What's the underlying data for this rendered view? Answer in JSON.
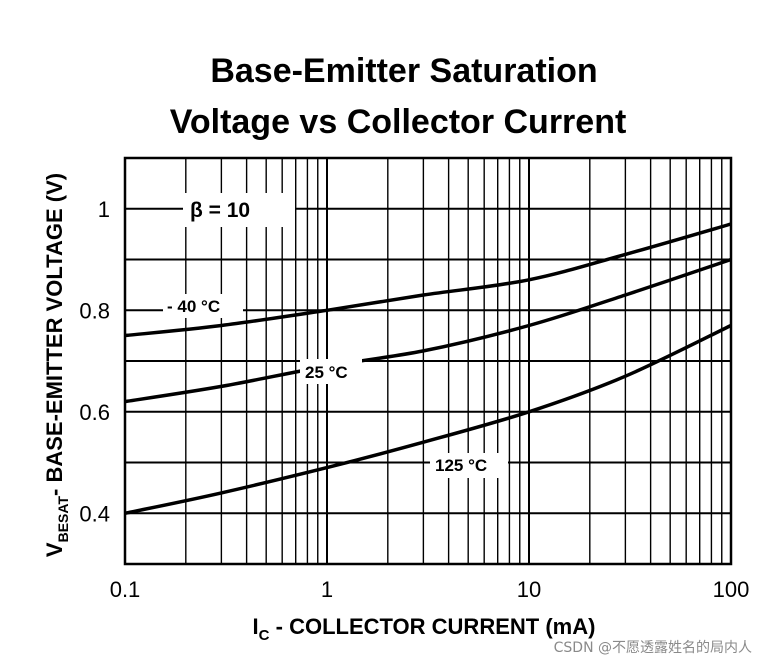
{
  "chart_data": {
    "type": "line",
    "title_line1": "Base-Emitter Saturation",
    "title_line2": "Voltage vs Collector Current",
    "xscale": "log",
    "xlim": [
      0.1,
      100
    ],
    "ylim": [
      0.3,
      1.1
    ],
    "x_ticks": [
      "0.1",
      "1",
      "10",
      "100"
    ],
    "y_ticks": [
      "0.4",
      "0.6",
      "0.8",
      "1"
    ],
    "xlabel_main": "I",
    "xlabel_sub": "C",
    "xlabel_rest": " - COLLECTOR CURRENT  (mA)",
    "ylabel_main": "V",
    "ylabel_sub": "BESAT",
    "ylabel_rest": "- BASE-EMITTER VOLTAGE (V)",
    "beta_label": "β  = 10",
    "grid": true,
    "series": [
      {
        "name": "- 40 °C",
        "x": [
          0.1,
          0.3,
          1,
          3,
          10,
          30,
          100
        ],
        "y": [
          0.75,
          0.77,
          0.8,
          0.83,
          0.86,
          0.91,
          0.97
        ]
      },
      {
        "name": "25 °C",
        "x": [
          0.1,
          0.3,
          1,
          3,
          10,
          30,
          100
        ],
        "y": [
          0.62,
          0.65,
          0.69,
          0.72,
          0.77,
          0.83,
          0.9
        ]
      },
      {
        "name": "125 °C",
        "x": [
          0.1,
          0.3,
          1,
          3,
          10,
          30,
          100
        ],
        "y": [
          0.4,
          0.44,
          0.49,
          0.54,
          0.6,
          0.67,
          0.77
        ]
      }
    ]
  },
  "watermark": "CSDN @不愿透露姓名的局内人"
}
